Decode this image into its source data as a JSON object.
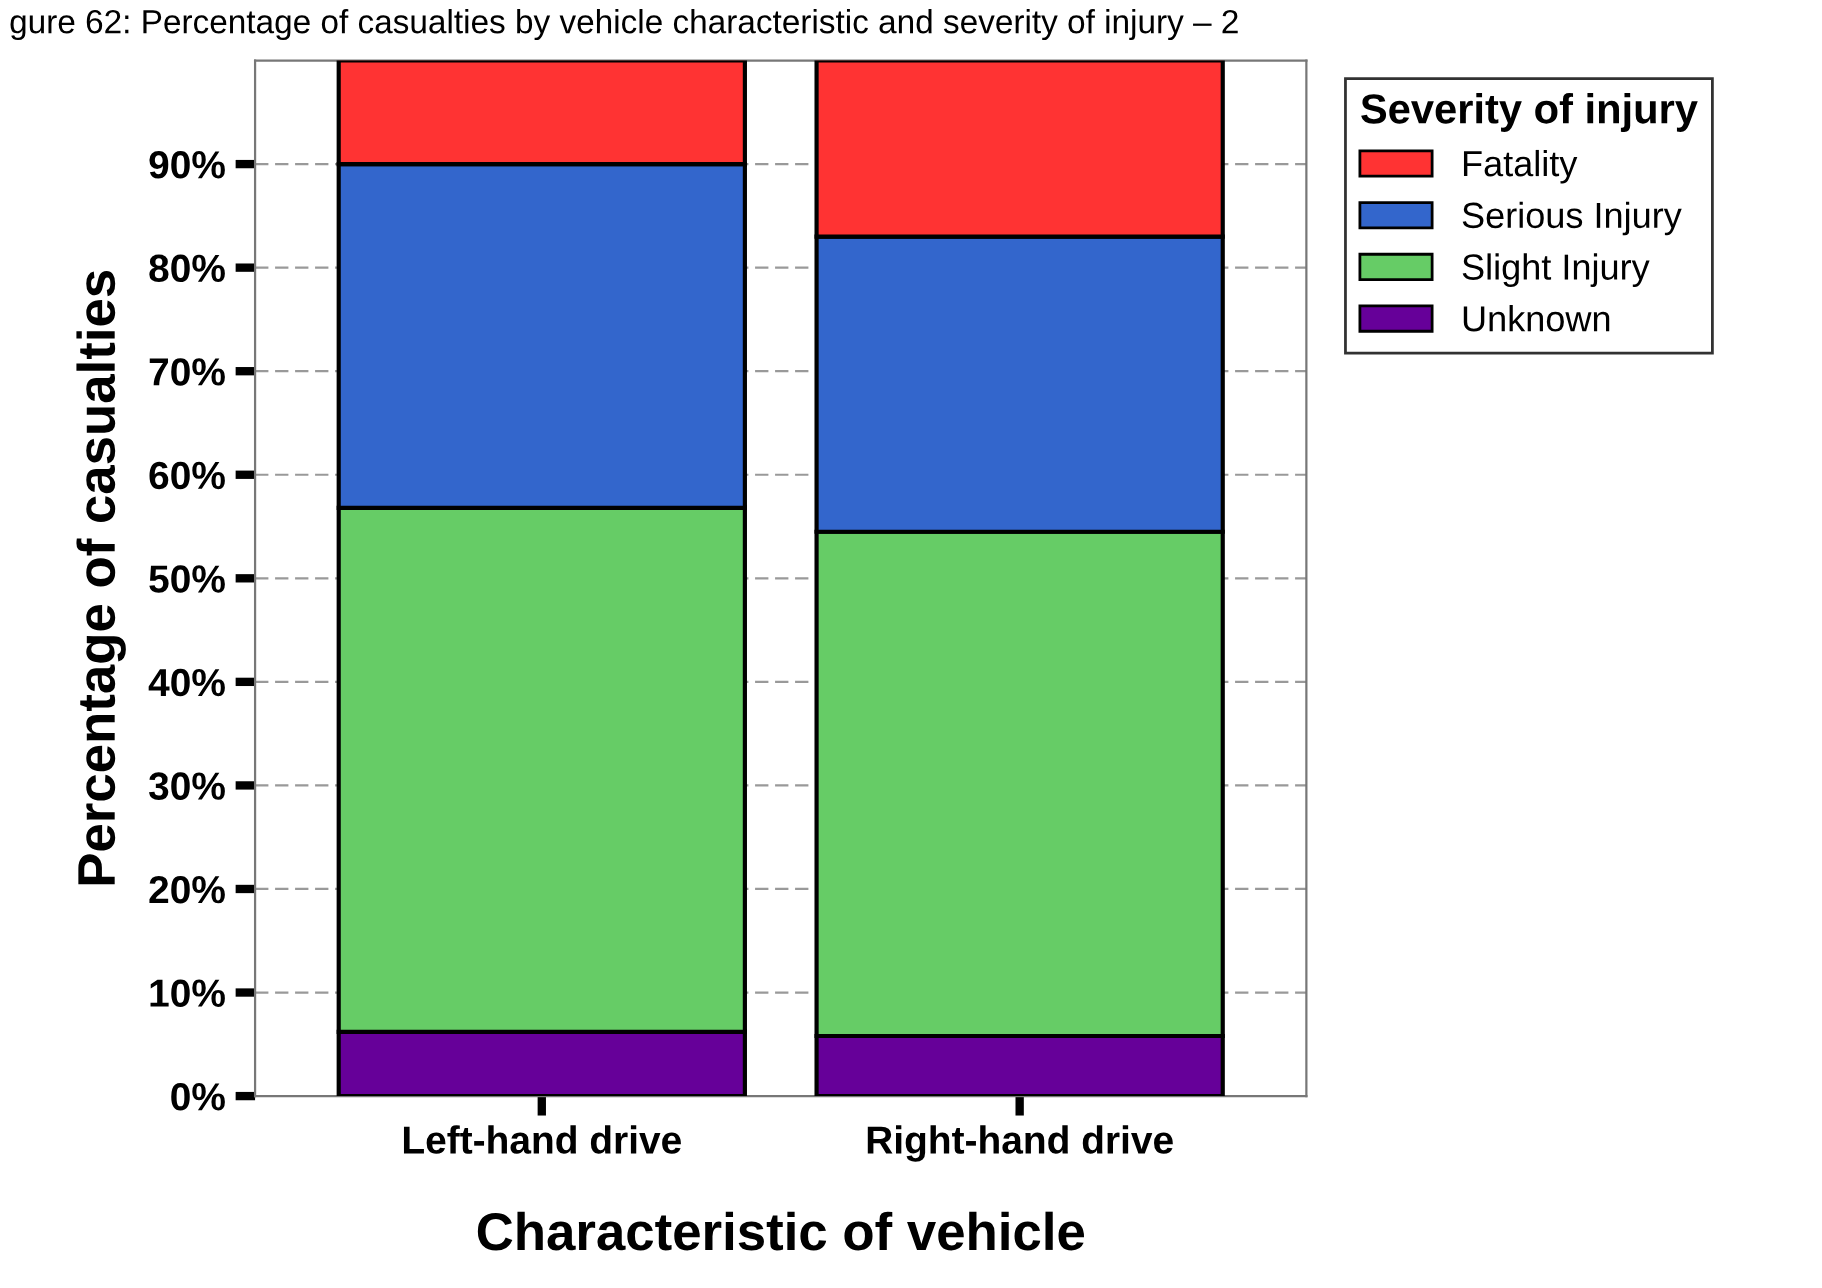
{
  "chart_data": {
    "type": "bar",
    "stacked": true,
    "title": "gure 62: Percentage of casualties by vehicle characteristic and severity of injury – 2",
    "xlabel": "Characteristic of vehicle",
    "ylabel": "Percentage of casualties",
    "legend_title": "Severity of injury",
    "categories": [
      "Left-hand drive",
      "Right-hand drive"
    ],
    "series": [
      {
        "name": "Unknown",
        "color": "#660099",
        "values": [
          6.2,
          5.8
        ]
      },
      {
        "name": "Slight Injury",
        "color": "#66cc66",
        "values": [
          50.6,
          48.7
        ]
      },
      {
        "name": "Serious Injury",
        "color": "#3366cc",
        "values": [
          33.2,
          28.5
        ]
      },
      {
        "name": "Fatality",
        "color": "#ff3333",
        "values": [
          10.0,
          17.0
        ]
      }
    ],
    "ylim": [
      0,
      100
    ],
    "yticks": [
      {
        "value": 0,
        "label": "0%"
      },
      {
        "value": 10,
        "label": "10%"
      },
      {
        "value": 20,
        "label": "20%"
      },
      {
        "value": 30,
        "label": "30%"
      },
      {
        "value": 40,
        "label": "40%"
      },
      {
        "value": 50,
        "label": "50%"
      },
      {
        "value": 60,
        "label": "60%"
      },
      {
        "value": 70,
        "label": "70%"
      },
      {
        "value": 80,
        "label": "80%"
      },
      {
        "value": 90,
        "label": "90%"
      }
    ],
    "grid": "y",
    "legend": "top right"
  }
}
